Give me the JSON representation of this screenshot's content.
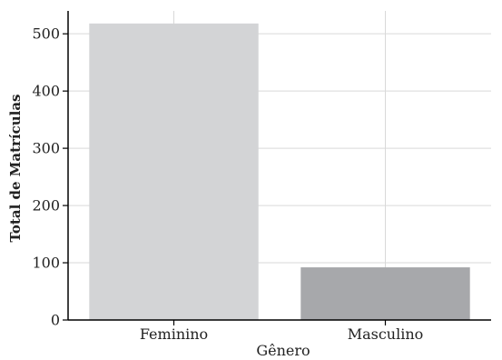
{
  "chart_data": {
    "type": "bar",
    "title": "",
    "xlabel": "Gênero",
    "ylabel": "Total de Matrículas",
    "categories": [
      "Feminino",
      "Masculino"
    ],
    "values": [
      518,
      92
    ],
    "ylim": [
      0,
      540
    ],
    "yticks": [
      0,
      100,
      200,
      300,
      400,
      500
    ],
    "grid": true,
    "bar_colors": [
      "#d3d4d6",
      "#a7a8ab"
    ],
    "grid_color": "#d9d9d9",
    "axis_color": "#000000"
  }
}
